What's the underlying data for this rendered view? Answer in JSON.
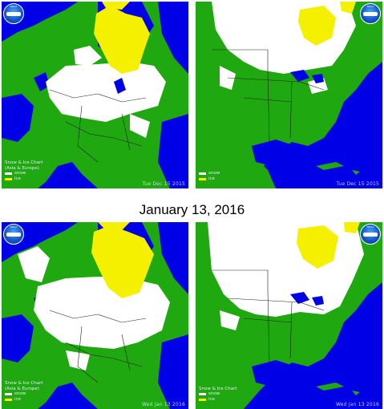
{
  "heading": "January 13, 2016",
  "colors": {
    "ocean": "#0000e6",
    "land": "#1fa80f",
    "snow": "#ffffff",
    "ice": "#f5f000",
    "border": "#222222"
  },
  "panels": [
    {
      "region": "Asia & Europe",
      "chart_title": "Snow & Ice Chart",
      "chart_subtitle": "(Asia & Europe)",
      "legend_snow": "snow",
      "legend_ice": "ice",
      "stamp": "Tue Dec 15   2015",
      "logo": "noaa-logo",
      "logo_text": "NOAA"
    },
    {
      "region": "North America",
      "legend_snow": "snow",
      "legend_ice": "ice",
      "stamp": "Tue Dec 15   2015",
      "logo": "noaa-logo",
      "logo_text": "NOAA"
    },
    {
      "region": "Asia & Europe",
      "chart_title": "Snow & Ice Chart",
      "chart_subtitle": "(Asia & Europe)",
      "legend_snow": "snow",
      "legend_ice": "ice",
      "stamp": "Wed Jan 13   2016",
      "logo": "noaa-logo",
      "logo_text": "NOAA"
    },
    {
      "region": "North America",
      "chart_title": "Snow & Ice Chart",
      "legend_snow": "snow",
      "legend_ice": "ice",
      "stamp": "Wed Jan 13   2016",
      "logo": "noaa-logo",
      "logo_text": "NOAA"
    }
  ]
}
